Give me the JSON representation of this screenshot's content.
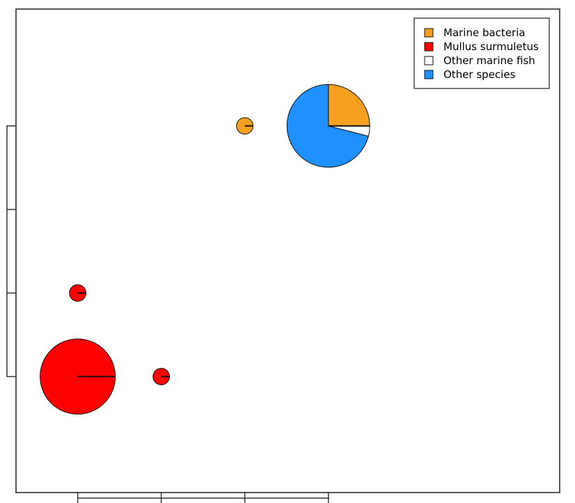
{
  "chart_data": {
    "type": "scatter",
    "subtype": "pie-glyph scatter",
    "title": "",
    "xlabel": "",
    "ylabel": "",
    "x_ticks": [
      1,
      2,
      3,
      4
    ],
    "y_ticks": [
      1,
      2,
      3,
      4
    ],
    "xlim": [
      0.27,
      6.76
    ],
    "ylim": [
      -0.38,
      5.39
    ],
    "grid": false,
    "legend_position": "top-right",
    "colors": {
      "Marine bacteria": "#f5a020",
      "Mullus surmuletus": "#ff0000",
      "Other marine fish": "#ffffff",
      "Other species": "#1e90ff"
    },
    "legend": [
      {
        "label": "Marine bacteria",
        "color": "#f5a020"
      },
      {
        "label": "Mullus surmuletus",
        "color": "#ff0000"
      },
      {
        "label": "Other marine fish",
        "color": "#ffffff"
      },
      {
        "label": "Other species",
        "color": "#1e90ff"
      }
    ],
    "points": [
      {
        "x": 1,
        "y": 1,
        "size": 1.0,
        "slices": [
          {
            "series": "Mullus surmuletus",
            "value": 100
          }
        ]
      },
      {
        "x": 1,
        "y": 2,
        "size": 0.22,
        "slices": [
          {
            "series": "Mullus surmuletus",
            "value": 100
          }
        ]
      },
      {
        "x": 2,
        "y": 1,
        "size": 0.22,
        "slices": [
          {
            "series": "Mullus surmuletus",
            "value": 100
          }
        ]
      },
      {
        "x": 3,
        "y": 4,
        "size": 0.22,
        "slices": [
          {
            "series": "Marine bacteria",
            "value": 100
          }
        ]
      },
      {
        "x": 4,
        "y": 4,
        "size": 1.1,
        "slices": [
          {
            "series": "Marine bacteria",
            "value": 25
          },
          {
            "series": "Other species",
            "value": 71
          },
          {
            "series": "Other marine fish",
            "value": 4
          }
        ]
      }
    ]
  }
}
